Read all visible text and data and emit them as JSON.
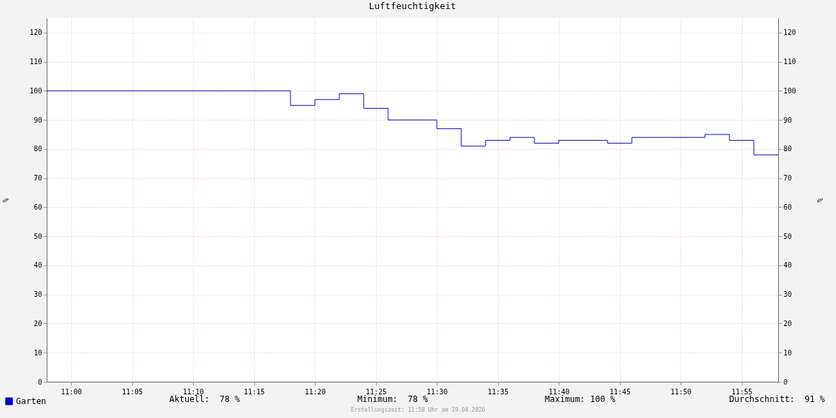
{
  "chart_data": {
    "type": "step",
    "title": "Luftfeuchtigkeit",
    "ylabel": "%",
    "y2label": "%",
    "x": [
      "2026-04-19T10:58",
      "2026-04-19T11:18",
      "2026-04-19T11:20",
      "2026-04-19T11:22",
      "2026-04-19T11:24",
      "2026-04-19T11:26",
      "2026-04-19T11:30",
      "2026-04-19T11:32",
      "2026-04-19T11:34",
      "2026-04-19T11:36",
      "2026-04-19T11:38",
      "2026-04-19T11:40",
      "2026-04-19T11:44",
      "2026-04-19T11:46",
      "2026-04-19T11:52",
      "2026-04-19T11:54",
      "2026-04-19T11:56",
      "2026-04-19T11:58"
    ],
    "series": [
      {
        "name": "Garten",
        "color": "#0000cc",
        "values": [
          100,
          95,
          97,
          99,
          94,
          90,
          87,
          81,
          83,
          84,
          82,
          83,
          82,
          84,
          85,
          83,
          78,
          78
        ]
      }
    ],
    "xlim": [
      "2026-04-19T10:58",
      "2026-04-19T11:58"
    ],
    "xticks": [
      {
        "value": "2026-04-19T11:00",
        "label": "11:00"
      },
      {
        "value": "2026-04-19T11:05",
        "label": "11:05"
      },
      {
        "value": "2026-04-19T11:10",
        "label": "11:10"
      },
      {
        "value": "2026-04-19T11:15",
        "label": "11:15"
      },
      {
        "value": "2026-04-19T11:20",
        "label": "11:20"
      },
      {
        "value": "2026-04-19T11:25",
        "label": "11:25"
      },
      {
        "value": "2026-04-19T11:30",
        "label": "11:30"
      },
      {
        "value": "2026-04-19T11:35",
        "label": "11:35"
      },
      {
        "value": "2026-04-19T11:40",
        "label": "11:40"
      },
      {
        "value": "2026-04-19T11:45",
        "label": "11:45"
      },
      {
        "value": "2026-04-19T11:50",
        "label": "11:50"
      },
      {
        "value": "2026-04-19T11:55",
        "label": "11:55"
      }
    ],
    "ylim": [
      0,
      125
    ],
    "yticks": [
      0,
      10,
      20,
      30,
      40,
      50,
      60,
      70,
      80,
      90,
      100,
      110,
      120
    ],
    "y2lim": [
      0,
      125
    ],
    "y2ticks": [
      0,
      10,
      20,
      30,
      40,
      50,
      60,
      70,
      80,
      90,
      100,
      110,
      120
    ],
    "grid": true,
    "legend": "bottom left",
    "marker": "none",
    "line_style": "solid",
    "annotations": [
      "Aktuell:  78 %",
      "Minimum:  78 %",
      "Maximum: 100 %",
      "Durchschnitt:  91 %",
      "Erstellungszeit: 11:58 Uhr am 19.04.2026"
    ]
  }
}
